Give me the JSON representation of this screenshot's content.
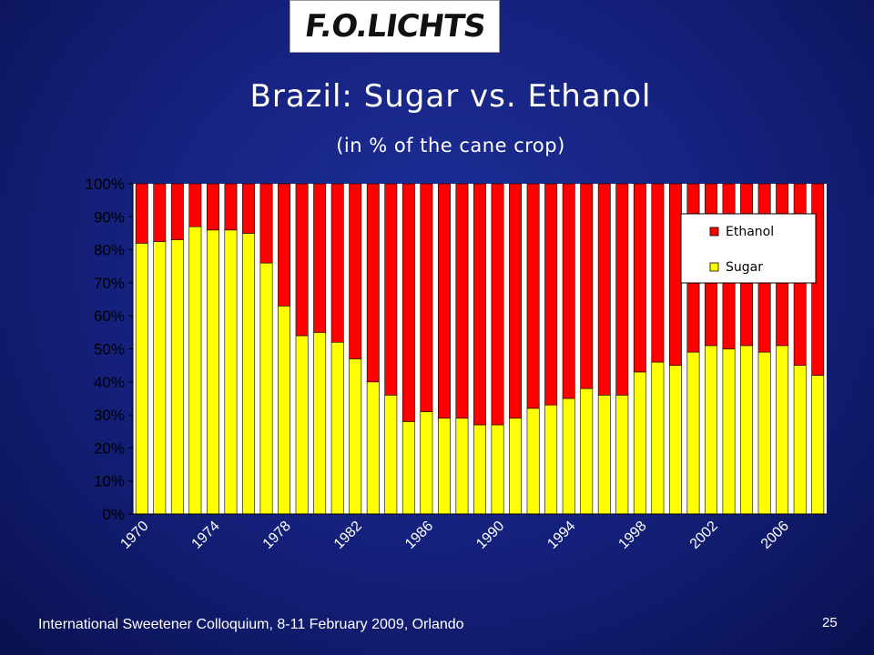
{
  "logo": {
    "text": "F.O.LICHTS"
  },
  "footer": {
    "text": "International Sweetener Colloquium, 8-11 February 2009, Orlando",
    "page": "25"
  },
  "colors": {
    "ethanol": "#ff0000",
    "sugar": "#ffff00",
    "plot_background": "#ffffff",
    "background": "#14207a"
  },
  "chart_data": {
    "type": "bar",
    "stacked": true,
    "title": "Brazil: Sugar vs. Ethanol",
    "subtitle": "(in % of the cane crop)",
    "xlabel": "",
    "ylabel": "",
    "ylim": [
      0,
      100
    ],
    "y_ticks": [
      "0%",
      "10%",
      "20%",
      "30%",
      "40%",
      "50%",
      "60%",
      "70%",
      "80%",
      "90%",
      "100%"
    ],
    "x_tick_labels": [
      "1970",
      "1974",
      "1978",
      "1982",
      "1986",
      "1990",
      "1994",
      "1998",
      "2002",
      "2006"
    ],
    "categories": [
      1970,
      1971,
      1972,
      1973,
      1974,
      1975,
      1976,
      1977,
      1978,
      1979,
      1980,
      1981,
      1982,
      1983,
      1984,
      1985,
      1986,
      1987,
      1988,
      1989,
      1990,
      1991,
      1992,
      1993,
      1994,
      1995,
      1996,
      1997,
      1998,
      1999,
      2000,
      2001,
      2002,
      2003,
      2004,
      2005,
      2006,
      2007,
      2008
    ],
    "legend": {
      "position": "top-right",
      "entries": [
        "Ethanol",
        "Sugar"
      ]
    },
    "grid": false,
    "series": [
      {
        "name": "Sugar",
        "values": [
          82,
          82.5,
          83,
          87,
          86,
          86,
          85,
          76,
          63,
          54,
          55,
          52,
          47,
          40,
          36,
          28,
          31,
          29,
          29,
          27,
          27,
          29,
          32,
          33,
          35,
          38,
          36,
          36,
          43,
          46,
          45,
          49,
          51,
          50,
          51,
          49,
          51,
          45,
          42
        ]
      },
      {
        "name": "Ethanol",
        "values": [
          18,
          17.5,
          17,
          13,
          14,
          14,
          15,
          24,
          37,
          46,
          45,
          48,
          53,
          60,
          64,
          72,
          69,
          71,
          71,
          73,
          73,
          71,
          68,
          67,
          65,
          62,
          64,
          64,
          57,
          54,
          55,
          51,
          49,
          50,
          49,
          51,
          49,
          55,
          58
        ]
      }
    ]
  }
}
